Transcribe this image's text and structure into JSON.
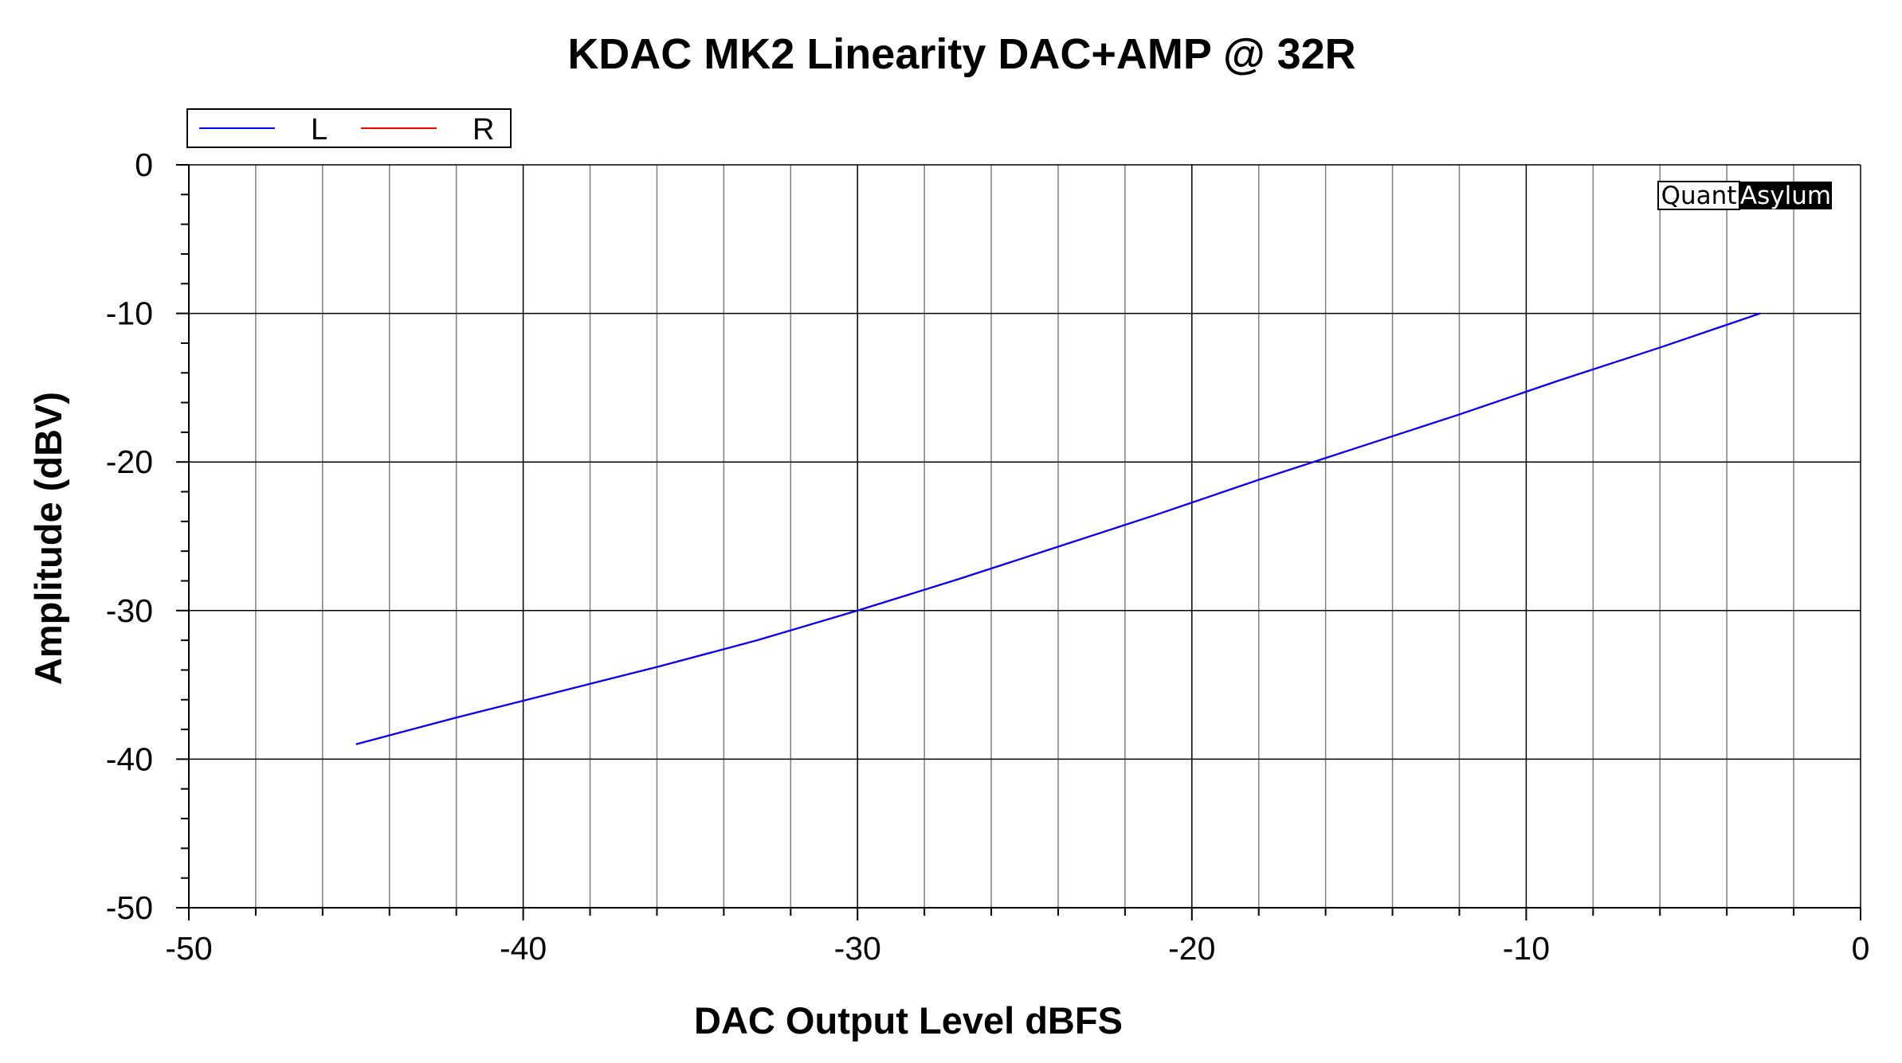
{
  "chart_data": {
    "type": "line",
    "title": "KDAC MK2 Linearity DAC+AMP @ 32R",
    "xlabel": "DAC Output Level dBFS",
    "ylabel": "Amplitude (dBV)",
    "xlim": [
      -50,
      0
    ],
    "ylim": [
      -50,
      0
    ],
    "x_ticks": [
      -50,
      -40,
      -30,
      -20,
      -10,
      0
    ],
    "x_tick_labels": [
      "-50",
      "-40",
      "-30",
      "-20",
      "-10",
      "0"
    ],
    "y_ticks": [
      0,
      -10,
      -20,
      -30,
      -40,
      -50
    ],
    "y_tick_labels": [
      "0",
      "-10",
      "-20",
      "-30",
      "-40",
      "-50"
    ],
    "x_major_grid_step": 10,
    "x_minor_grid_step": 2,
    "y_major_grid_step": 10,
    "y_minor_tick_step": 2,
    "grid": true,
    "legend_position": "top-left",
    "series": [
      {
        "name": "L",
        "color": "#0000ff",
        "x": [
          -45,
          -42,
          -39,
          -36,
          -33,
          -30,
          -27,
          -24,
          -21,
          -18,
          -15,
          -12,
          -9,
          -6,
          -3
        ],
        "y": [
          -39,
          -37.2,
          -35.5,
          -33.8,
          -32,
          -30,
          -27.9,
          -25.7,
          -23.5,
          -21.2,
          -19,
          -16.8,
          -14.5,
          -12.3,
          -10
        ]
      },
      {
        "name": "R",
        "color": "#ff0000",
        "x": [
          -45,
          -42,
          -39,
          -36,
          -33,
          -30,
          -27,
          -24,
          -21,
          -18,
          -15,
          -12,
          -9,
          -6,
          -3
        ],
        "y": [
          -39,
          -37.2,
          -35.5,
          -33.8,
          -32,
          -30,
          -27.9,
          -25.7,
          -23.5,
          -21.2,
          -19,
          -16.8,
          -14.5,
          -12.3,
          -10
        ]
      }
    ]
  },
  "badge": {
    "part1": "Quant",
    "part2": "Asylum"
  },
  "colors": {
    "background": "#ffffff",
    "major_grid": "#000000",
    "minor_grid": "#7f7f7f",
    "axis": "#000000",
    "badge_dark": "#000000"
  }
}
